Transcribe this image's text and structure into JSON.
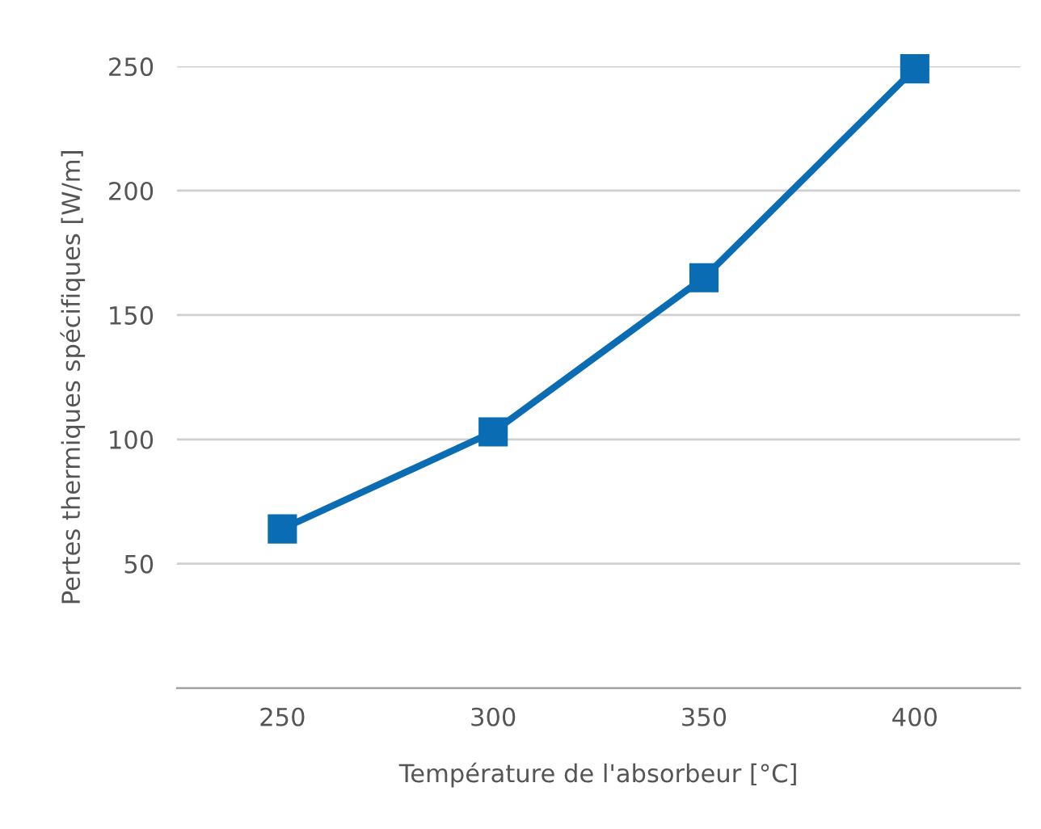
{
  "chart_data": {
    "type": "line",
    "xlabel": "Température de l'absorbeur [°C]",
    "ylabel": "Pertes thermiques spécifiques [W/m]",
    "x": [
      250,
      300,
      350,
      400
    ],
    "series": [
      {
        "color": "#0a6db3",
        "values": [
          64,
          103,
          165,
          249
        ]
      }
    ],
    "xlim": [
      225,
      425
    ],
    "xticks": [
      250,
      300,
      350,
      400
    ],
    "ylim": [
      0,
      250
    ],
    "yticks": [
      50,
      100,
      150,
      200,
      250
    ],
    "grid": "y",
    "marker": "square",
    "line_style": "solid"
  }
}
